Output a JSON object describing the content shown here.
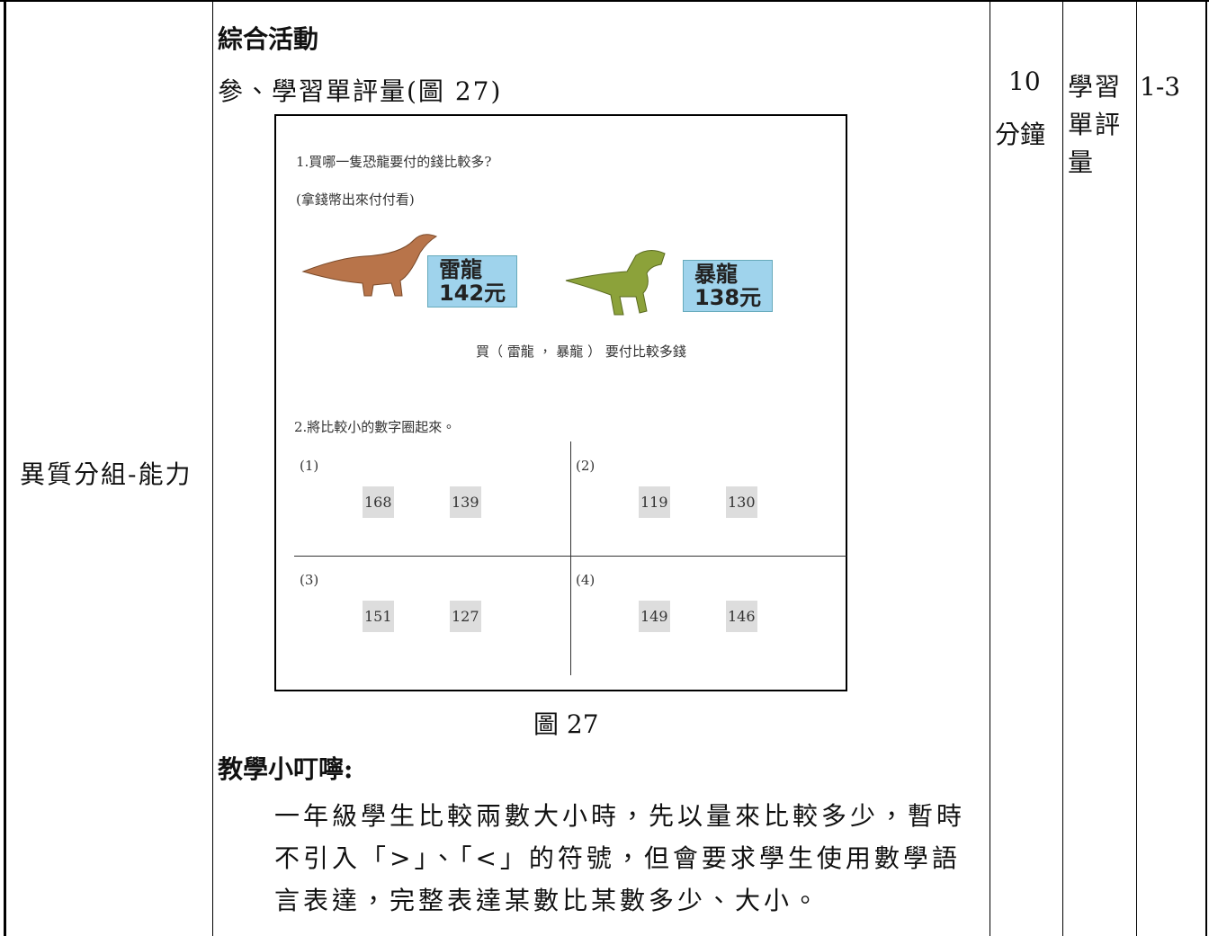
{
  "table": {
    "group": "異質分組-能力",
    "activity_title": "綜合活動",
    "section_title": "參、學習單評量(圖 27)",
    "time_number": "10",
    "time_unit": "分鐘",
    "assessment": "學習單評量",
    "index": "1-3",
    "worksheet": {
      "q1": "1.買哪一隻恐龍要付的錢比較多?",
      "q1_hint": "(拿錢幣出來付付看)",
      "dino1_name": "雷龍",
      "dino1_price": "142元",
      "dino2_name": "暴龍",
      "dino2_price": "138元",
      "q1_answer": "買（ 雷龍 ， 暴龍 ） 要付比較多錢",
      "q2": "2.將比較小的數字圈起來。",
      "cells": [
        {
          "label": "(1)",
          "a": "168",
          "b": "139"
        },
        {
          "label": "(2)",
          "a": "119",
          "b": "130"
        },
        {
          "label": "(3)",
          "a": "151",
          "b": "127"
        },
        {
          "label": "(4)",
          "a": "149",
          "b": "146"
        }
      ]
    },
    "caption": "圖 27",
    "tip_title": "教學小叮嚀:",
    "tip_lines": [
      "一年級學生比較兩數大小時，先以量來比較多少，暫時",
      "不引入「>」、「<」的符號，但會要求學生使用數學語",
      "言表達，完整表達某數比某數多少、大小。"
    ]
  }
}
